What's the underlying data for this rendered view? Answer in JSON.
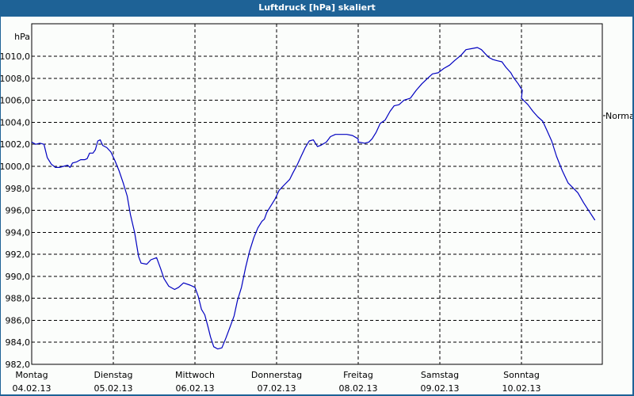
{
  "window": {
    "title": "Luftdruck [hPa] skaliert",
    "background_color": "#1e6296",
    "plot_background": "#fbfdfb",
    "line_color": "#0000c0"
  },
  "chart_data": {
    "type": "line",
    "title": "Luftdruck [hPa] skaliert",
    "xlabel": "",
    "ylabel": "hPa",
    "ylim": [
      982.0,
      1012.0
    ],
    "grid": true,
    "grid_style": "dashed",
    "y_ticks": [
      "982,0",
      "984,0",
      "986,0",
      "988,0",
      "990,0",
      "992,0",
      "994,0",
      "996,0",
      "998,0",
      "1000,0",
      "1002,0",
      "1004,0",
      "1006,0",
      "1008,0",
      "1010,0"
    ],
    "x_ticks": [
      {
        "day": "Montag",
        "date": "04.02.13"
      },
      {
        "day": "Dienstag",
        "date": "05.02.13"
      },
      {
        "day": "Mittwoch",
        "date": "06.02.13"
      },
      {
        "day": "Donnerstag",
        "date": "07.02.13"
      },
      {
        "day": "Freitag",
        "date": "08.02.13"
      },
      {
        "day": "Samstag",
        "date": "09.02.13"
      },
      {
        "day": "Sonntag",
        "date": "10.02.13"
      }
    ],
    "reference_marker": {
      "label": "Normal",
      "value": 1004.6
    },
    "series": [
      {
        "name": "Luftdruck",
        "x_days": [
          0.0,
          0.05,
          0.1,
          0.15,
          0.19,
          0.24,
          0.29,
          0.34,
          0.39,
          0.44,
          0.47,
          0.5,
          0.55,
          0.6,
          0.65,
          0.68,
          0.71,
          0.75,
          0.78,
          0.81,
          0.84,
          0.87,
          0.92,
          0.97,
          1.02,
          1.07,
          1.12,
          1.17,
          1.21,
          1.26,
          1.31,
          1.34,
          1.41,
          1.46,
          1.53,
          1.58,
          1.62,
          1.68,
          1.75,
          1.8,
          1.86,
          1.94,
          2.0,
          2.04,
          2.08,
          2.12,
          2.16,
          2.19,
          2.23,
          2.28,
          2.33,
          2.38,
          2.43,
          2.48,
          2.52,
          2.57,
          2.62,
          2.67,
          2.72,
          2.77,
          2.82,
          2.85,
          2.88,
          2.92,
          2.98,
          3.03,
          3.08,
          3.16,
          3.2,
          3.25,
          3.3,
          3.35,
          3.4,
          3.45,
          3.5,
          3.54,
          3.61,
          3.66,
          3.72,
          3.79,
          3.86,
          3.93,
          4.0,
          4.0,
          4.08,
          4.13,
          4.17,
          4.22,
          4.27,
          4.33,
          4.39,
          4.44,
          4.5,
          4.56,
          4.64,
          4.71,
          4.78,
          4.85,
          4.91,
          4.98,
          5.05,
          5.12,
          5.18,
          5.26,
          5.32,
          5.39,
          5.46,
          5.51,
          5.56,
          5.6,
          5.65,
          5.7,
          5.76,
          5.81,
          5.87,
          5.9,
          5.96,
          6.01,
          6.0,
          6.08,
          6.14,
          6.2,
          6.26,
          6.31,
          6.37,
          6.43,
          6.5,
          6.57,
          6.69,
          6.76,
          6.83,
          6.9,
          6.96
        ],
        "values": [
          1002.2,
          1002.0,
          1002.1,
          1002.0,
          1000.8,
          1000.2,
          999.9,
          999.9,
          1000.0,
          1000.1,
          999.9,
          1000.3,
          1000.4,
          1000.6,
          1000.6,
          1000.7,
          1001.2,
          1001.2,
          1001.5,
          1002.3,
          1002.4,
          1001.9,
          1001.7,
          1001.3,
          1000.5,
          999.6,
          998.5,
          997.3,
          995.6,
          994.0,
          991.8,
          991.2,
          991.1,
          991.5,
          991.7,
          990.7,
          989.8,
          989.1,
          988.8,
          989.0,
          989.4,
          989.2,
          989.0,
          988.2,
          987.0,
          986.5,
          985.4,
          984.5,
          983.6,
          983.4,
          983.5,
          984.4,
          985.4,
          986.4,
          987.8,
          989.0,
          990.8,
          992.3,
          993.5,
          994.4,
          995.0,
          995.2,
          995.8,
          996.3,
          997.0,
          997.8,
          998.2,
          998.8,
          999.4,
          1000.1,
          1000.9,
          1001.7,
          1002.3,
          1002.4,
          1001.8,
          1001.9,
          1002.2,
          1002.7,
          1002.9,
          1002.9,
          1002.9,
          1002.8,
          1002.5,
          1002.2,
          1002.1,
          1002.2,
          1002.5,
          1003.1,
          1003.9,
          1004.2,
          1005.0,
          1005.5,
          1005.6,
          1006.0,
          1006.2,
          1006.9,
          1007.5,
          1008.0,
          1008.4,
          1008.5,
          1008.9,
          1009.2,
          1009.6,
          1010.1,
          1010.6,
          1010.7,
          1010.8,
          1010.6,
          1010.2,
          1009.9,
          1009.7,
          1009.6,
          1009.5,
          1009.0,
          1008.5,
          1008.1,
          1007.5,
          1006.9,
          1006.2,
          1005.6,
          1005.0,
          1004.5,
          1004.1,
          1003.3,
          1002.3,
          1000.9,
          999.6,
          998.5,
          997.6,
          996.7,
          995.9,
          995.1
        ]
      }
    ]
  }
}
